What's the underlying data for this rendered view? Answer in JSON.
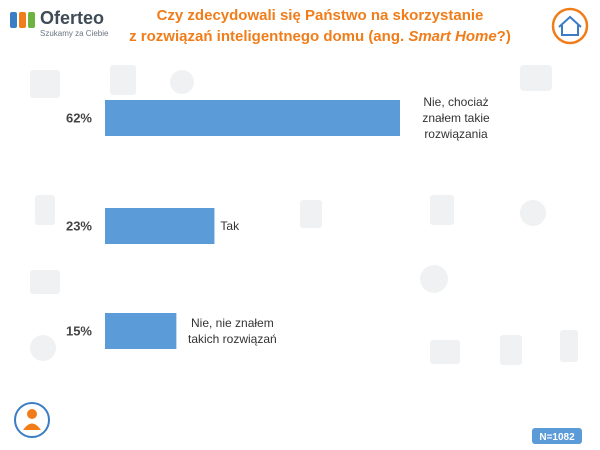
{
  "chart_data": {
    "type": "bar",
    "orientation": "horizontal",
    "title": [
      "Czy zdecydowali się Państwo na skorzystanie",
      "z rozwiązań inteligentnego domu (ang. ",
      "Smart Home",
      "?)"
    ],
    "categories": [
      "Nie, chociaż znałem takie rozwiązania",
      "Tak",
      "Nie, nie znałem takich rozwiązań"
    ],
    "values": [
      62,
      23,
      15
    ],
    "value_labels": [
      "62%",
      "23%",
      "15%"
    ],
    "color": "#5b9bd8"
  },
  "header": {
    "logo": "Oferteo",
    "tagline": "Szukamy za Ciebie"
  },
  "footer": {
    "sample": "N=1082"
  }
}
